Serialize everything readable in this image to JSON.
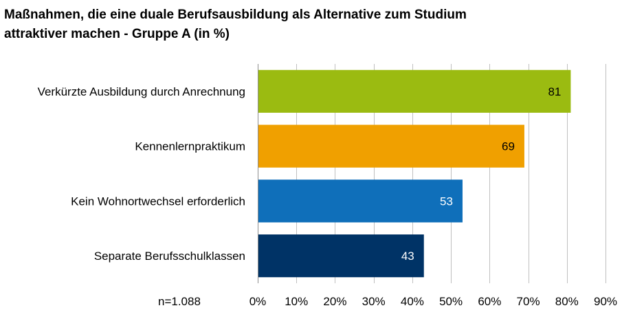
{
  "chart_data": {
    "type": "bar",
    "orientation": "horizontal",
    "title": "Maßnahmen, die eine duale Berufsausbildung als Alternative zum Studium attraktiver machen - Gruppe A (in %)",
    "title_lines": [
      "Maßnahmen, die eine duale Berufsausbildung als Alternative zum Studium",
      "attraktiver machen - Gruppe A (in %)"
    ],
    "categories": [
      "Verkürzte Ausbildung durch Anrechnung",
      "Kennenlernpraktikum",
      "Kein Wohnortwechsel erforderlich",
      "Separate Berufsschulklassen"
    ],
    "values": [
      81,
      69,
      53,
      43
    ],
    "value_labels": [
      "81",
      "69",
      "53",
      "43"
    ],
    "bar_colors": [
      "#9bbb11",
      "#f0a000",
      "#0f6fba",
      "#003366"
    ],
    "value_label_colors": [
      "#000000",
      "#000000",
      "#ffffff",
      "#ffffff"
    ],
    "xlim": [
      0,
      90
    ],
    "x_ticks": [
      0,
      10,
      20,
      30,
      40,
      50,
      60,
      70,
      80,
      90
    ],
    "x_tick_labels": [
      "0%",
      "10%",
      "20%",
      "30%",
      "40%",
      "50%",
      "60%",
      "70%",
      "80%",
      "90%"
    ],
    "grid": true,
    "note": "n=1.088"
  }
}
